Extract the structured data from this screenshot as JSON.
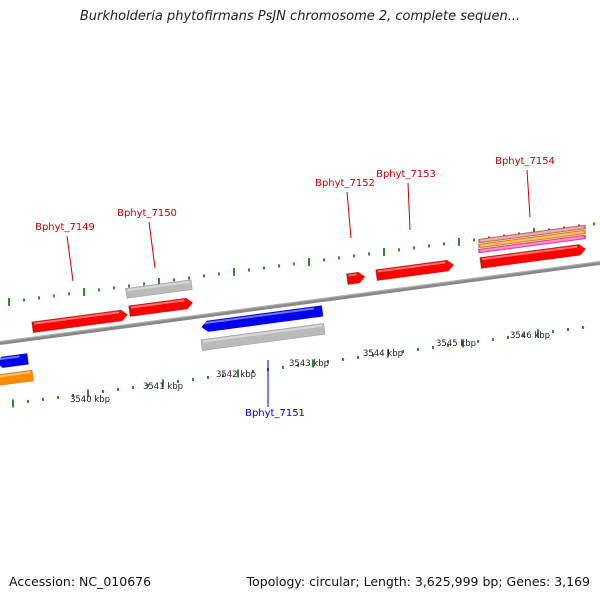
{
  "title": "Burkholderia phytofirmans PsJN chromosome 2, complete sequen...",
  "footer": {
    "accession": "Accession: NC_010676",
    "summary": "Topology: circular; Length: 3,625,999 bp; Genes: 3,169"
  },
  "colors": {
    "forward_gene": "#ff0000",
    "reverse_gene": "#0000ee",
    "gray_feature": "#bbbbbb",
    "orange_feature": "#ff8c00",
    "pink_feature": "#ff3fa0",
    "tick": "#2e8b2e",
    "backbone": "#8a8a8a",
    "label_forward": "#cc0000",
    "label_reverse": "#0000cc"
  },
  "kbp_labels": [
    "3540 kbp",
    "3541 kbp",
    "3542 kbp",
    "3543 kbp",
    "3544 kbp",
    "3545 kbp",
    "3546 kbp"
  ],
  "gene_labels": [
    {
      "name": "Bphyt_7149",
      "strand": "forward"
    },
    {
      "name": "Bphyt_7150",
      "strand": "forward"
    },
    {
      "name": "Bphyt_7151",
      "strand": "reverse"
    },
    {
      "name": "Bphyt_7152",
      "strand": "forward"
    },
    {
      "name": "Bphyt_7153",
      "strand": "forward"
    },
    {
      "name": "Bphyt_7154",
      "strand": "forward"
    }
  ]
}
